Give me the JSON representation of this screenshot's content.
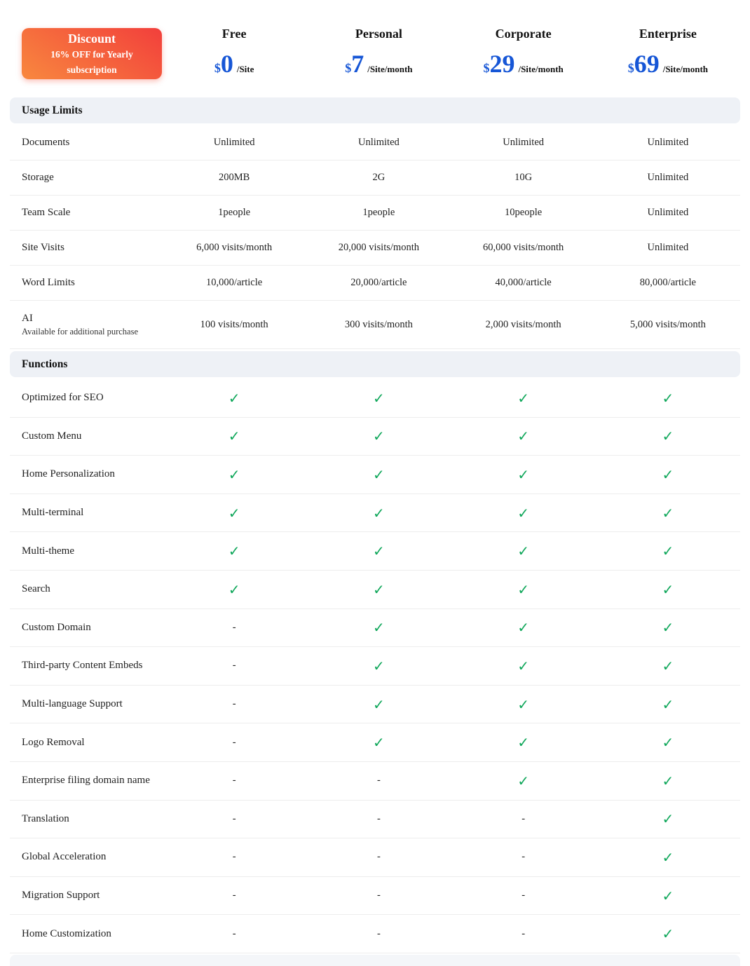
{
  "badge": {
    "title": "Discount",
    "subtitle": "16% OFF for Yearly subscription"
  },
  "plans": [
    {
      "name": "Free",
      "currency": "$",
      "price": "0",
      "unit": "/Site"
    },
    {
      "name": "Personal",
      "currency": "$",
      "price": "7",
      "unit": "/Site/month"
    },
    {
      "name": "Corporate",
      "currency": "$",
      "price": "29",
      "unit": "/Site/month"
    },
    {
      "name": "Enterprise",
      "currency": "$",
      "price": "69",
      "unit": "/Site/month"
    }
  ],
  "sections": [
    {
      "title": "Usage Limits",
      "rows": [
        {
          "label": "Documents",
          "values": [
            "Unlimited",
            "Unlimited",
            "Unlimited",
            "Unlimited"
          ]
        },
        {
          "label": "Storage",
          "values": [
            "200MB",
            "2G",
            "10G",
            "Unlimited"
          ]
        },
        {
          "label": "Team Scale",
          "values": [
            "1people",
            "1people",
            "10people",
            "Unlimited"
          ]
        },
        {
          "label": "Site Visits",
          "values": [
            "6,000 visits/month",
            "20,000 visits/month",
            "60,000 visits/month",
            "Unlimited"
          ]
        },
        {
          "label": "Word Limits",
          "values": [
            "10,000/article",
            "20,000/article",
            "40,000/article",
            "80,000/article"
          ]
        },
        {
          "label": "AI",
          "sublabel": "Available for additional purchase",
          "values": [
            "100 visits/month",
            "300 visits/month",
            "2,000 visits/month",
            "5,000 visits/month"
          ]
        }
      ]
    },
    {
      "title": "Functions",
      "rows": [
        {
          "label": "Optimized for SEO",
          "values": [
            "check",
            "check",
            "check",
            "check"
          ]
        },
        {
          "label": "Custom Menu",
          "values": [
            "check",
            "check",
            "check",
            "check"
          ]
        },
        {
          "label": "Home Personalization",
          "values": [
            "check",
            "check",
            "check",
            "check"
          ]
        },
        {
          "label": "Multi-terminal",
          "values": [
            "check",
            "check",
            "check",
            "check"
          ]
        },
        {
          "label": "Multi-theme",
          "values": [
            "check",
            "check",
            "check",
            "check"
          ]
        },
        {
          "label": "Search",
          "values": [
            "check",
            "check",
            "check",
            "check"
          ]
        },
        {
          "label": "Custom Domain",
          "values": [
            "dash",
            "check",
            "check",
            "check"
          ]
        },
        {
          "label": "Third-party Content Embeds",
          "values": [
            "dash",
            "check",
            "check",
            "check"
          ]
        },
        {
          "label": "Multi-language Support",
          "values": [
            "dash",
            "check",
            "check",
            "check"
          ]
        },
        {
          "label": "Logo Removal",
          "values": [
            "dash",
            "check",
            "check",
            "check"
          ]
        },
        {
          "label": "Enterprise filing domain name",
          "values": [
            "dash",
            "dash",
            "check",
            "check"
          ]
        },
        {
          "label": "Translation",
          "values": [
            "dash",
            "dash",
            "dash",
            "check"
          ]
        },
        {
          "label": "Global Acceleration",
          "values": [
            "dash",
            "dash",
            "dash",
            "check"
          ]
        },
        {
          "label": "Migration Support",
          "values": [
            "dash",
            "dash",
            "dash",
            "check"
          ]
        },
        {
          "label": "Home Customization",
          "values": [
            "dash",
            "dash",
            "dash",
            "check"
          ]
        }
      ]
    }
  ],
  "symbols": {
    "check": "✓",
    "dash": "-"
  },
  "colors": {
    "accent_blue": "#1656d6",
    "check_green": "#0fa75a",
    "badge_gradient_start": "#f8883e",
    "badge_gradient_end": "#f23f3c",
    "section_bg": "#eef1f6",
    "section_bg_light": "#f4f6f9"
  }
}
